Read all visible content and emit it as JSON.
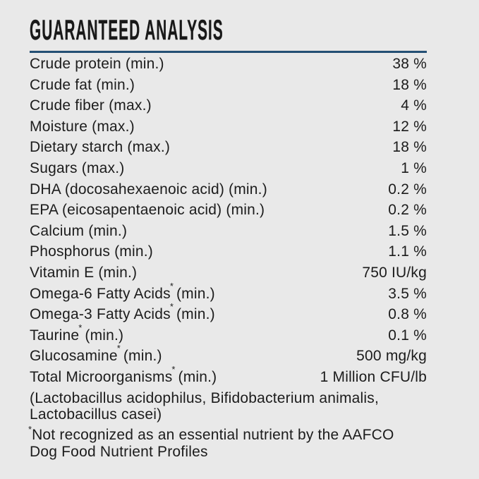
{
  "page": {
    "background_color": "#e9e9e9",
    "text_color": "#1c1c1c",
    "rule_color": "#2a5d88"
  },
  "header": {
    "title": "GUARANTEED ANALYSIS"
  },
  "table": {
    "rows": [
      {
        "name": "Crude protein (min.)",
        "marker": "",
        "suffix": "",
        "value": "38 %"
      },
      {
        "name": "Crude fat (min.)",
        "marker": "",
        "suffix": "",
        "value": "18 %"
      },
      {
        "name": "Crude fiber (max.)",
        "marker": "",
        "suffix": "",
        "value": "4 %"
      },
      {
        "name": "Moisture (max.)",
        "marker": "",
        "suffix": "",
        "value": "12 %"
      },
      {
        "name": "Dietary starch (max.)",
        "marker": "",
        "suffix": "",
        "value": "18 %"
      },
      {
        "name": "Sugars (max.)",
        "marker": "",
        "suffix": "",
        "value": "1 %"
      },
      {
        "name": "DHA (docosahexaenoic acid) (min.)",
        "marker": "",
        "suffix": "",
        "value": "0.2 %"
      },
      {
        "name": "EPA (eicosapentaenoic acid) (min.)",
        "marker": "",
        "suffix": "",
        "value": "0.2 %"
      },
      {
        "name": "Calcium (min.)",
        "marker": "",
        "suffix": "",
        "value": "1.5 %"
      },
      {
        "name": "Phosphorus (min.)",
        "marker": "",
        "suffix": "",
        "value": "1.1 %"
      },
      {
        "name": "Vitamin E (min.)",
        "marker": "",
        "suffix": "",
        "value": "750 IU/kg"
      },
      {
        "name": "Omega-6 Fatty Acids",
        "marker": "*",
        "suffix": " (min.)",
        "value": "3.5 %"
      },
      {
        "name": "Omega-3 Fatty Acids",
        "marker": "*",
        "suffix": " (min.)",
        "value": "0.8 %"
      },
      {
        "name": "Taurine",
        "marker": "*",
        "suffix": " (min.)",
        "value": "0.1 %"
      },
      {
        "name": "Glucosamine",
        "marker": "*",
        "suffix": " (min.)",
        "value": "500 mg/kg"
      },
      {
        "name": "Total Microorganisms",
        "marker": "*",
        "suffix": " (min.)",
        "value": "1 Million CFU/lb"
      }
    ]
  },
  "notes": {
    "microorganism_species": "(Lactobacillus acidophilus, Bifidobacterium animalis, Lactobacillus casei)",
    "footnote_marker": "*",
    "footnote_text": "Not recognized as an essential nutrient by the AAFCO Dog Food Nutrient Profiles"
  }
}
